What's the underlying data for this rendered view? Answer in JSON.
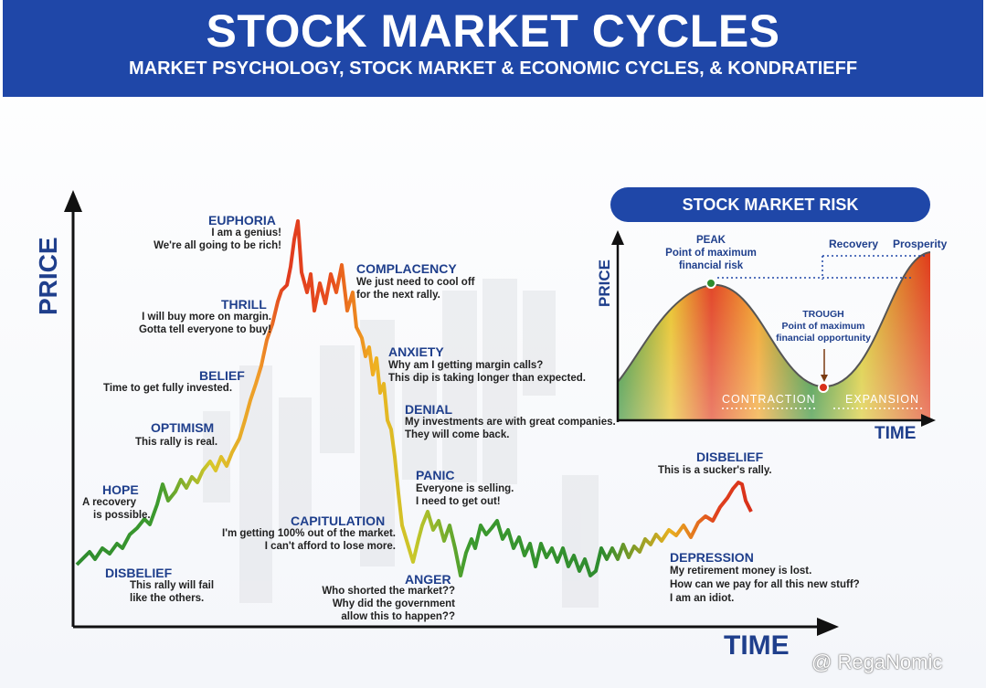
{
  "header": {
    "title": "STOCK MARKET CYCLES",
    "subtitle": "MARKET PSYCHOLOGY, STOCK MARKET & ECONOMIC CYCLES, & KONDRATIEFF"
  },
  "main_chart": {
    "y_axis_label": "PRICE",
    "x_axis_label": "TIME",
    "stages": [
      {
        "id": "hope",
        "title": "HOPE",
        "lines": [
          "A recovery",
          "is possible."
        ]
      },
      {
        "id": "disbelief1",
        "title": "DISBELIEF",
        "lines": [
          "This rally will fail",
          "like the others."
        ]
      },
      {
        "id": "optimism",
        "title": "OPTIMISM",
        "lines": [
          "This rally is real."
        ]
      },
      {
        "id": "belief",
        "title": "BELIEF",
        "lines": [
          "Time to get fully invested."
        ]
      },
      {
        "id": "thrill",
        "title": "THRILL",
        "lines": [
          "I will buy more on margin.",
          "Gotta tell everyone to buy!"
        ]
      },
      {
        "id": "euphoria",
        "title": "EUPHORIA",
        "lines": [
          "I am a genius!",
          "We're all going to be rich!"
        ]
      },
      {
        "id": "complacency",
        "title": "COMPLACENCY",
        "lines": [
          "We just need to cool off",
          "for the next rally."
        ]
      },
      {
        "id": "anxiety",
        "title": "ANXIETY",
        "lines": [
          "Why am I getting margin calls?",
          "This dip is taking longer than expected."
        ]
      },
      {
        "id": "denial",
        "title": "DENIAL",
        "lines": [
          "My investments are with great companies.",
          "They will come back."
        ]
      },
      {
        "id": "panic",
        "title": "PANIC",
        "lines": [
          "Everyone is selling.",
          "I need to get out!"
        ]
      },
      {
        "id": "capitulation",
        "title": "CAPITULATION",
        "lines": [
          "I'm getting 100% out of the market.",
          "I can't afford to lose more."
        ]
      },
      {
        "id": "anger",
        "title": "ANGER",
        "lines": [
          "Who shorted the market??",
          "Why did the government",
          "allow this to happen??"
        ]
      },
      {
        "id": "depression",
        "title": "DEPRESSION",
        "lines": [
          "My retirement money is lost.",
          "How can we pay for all this new stuff?",
          "I am an idiot."
        ]
      },
      {
        "id": "disbelief2",
        "title": "DISBELIEF",
        "lines": [
          "This is a sucker's rally."
        ]
      }
    ]
  },
  "risk_chart": {
    "title": "STOCK MARKET RISK",
    "y_axis_label": "PRICE",
    "x_axis_label": "TIME",
    "peak": {
      "title": "PEAK",
      "lines": [
        "Point of maximum",
        "financial risk"
      ]
    },
    "trough": {
      "title": "TROUGH",
      "lines": [
        "Point of maximum",
        "financial opportunity"
      ]
    },
    "recovery_label": "Recovery",
    "prosperity_label": "Prosperity",
    "contraction_label": "CONTRACTION",
    "expansion_label": "EXPANSION"
  },
  "watermark": "@ RegaNomic",
  "colors": {
    "banner": "#1f47a8",
    "label_blue": "#1f3f8c",
    "green": "#2e8b2e",
    "yellow": "#e8c020",
    "orange": "#f08a20",
    "red": "#d8301a"
  }
}
